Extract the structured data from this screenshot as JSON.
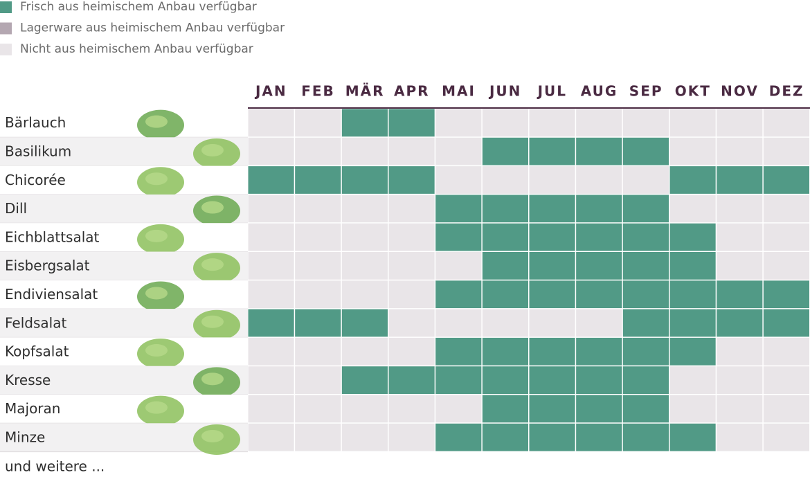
{
  "legend": [
    {
      "label": "Frisch aus heimischem Anbau verfügbar",
      "color": "#519a86"
    },
    {
      "label": "Lagerware aus heimischem Anbau verfügbar",
      "color": "#b4a7b1"
    },
    {
      "label": "Nicht aus heimischem Anbau verfügbar",
      "color": "#e9e5e8"
    }
  ],
  "months": [
    "JAN",
    "FEB",
    "MÄR",
    "APR",
    "MAI",
    "JUN",
    "JUL",
    "AUG",
    "SEP",
    "OKT",
    "NOV",
    "DEZ"
  ],
  "rows": [
    {
      "name": "Bärlauch",
      "status": [
        2,
        2,
        0,
        0,
        2,
        2,
        2,
        2,
        2,
        2,
        2,
        2
      ]
    },
    {
      "name": "Basilikum",
      "status": [
        2,
        2,
        2,
        2,
        2,
        0,
        0,
        0,
        0,
        2,
        2,
        2
      ]
    },
    {
      "name": "Chicorée",
      "status": [
        0,
        0,
        0,
        0,
        2,
        2,
        2,
        2,
        2,
        0,
        0,
        0
      ]
    },
    {
      "name": "Dill",
      "status": [
        2,
        2,
        2,
        2,
        0,
        0,
        0,
        0,
        0,
        2,
        2,
        2
      ]
    },
    {
      "name": "Eichblattsalat",
      "status": [
        2,
        2,
        2,
        2,
        0,
        0,
        0,
        0,
        0,
        0,
        2,
        2
      ]
    },
    {
      "name": "Eisbergsalat",
      "status": [
        2,
        2,
        2,
        2,
        2,
        0,
        0,
        0,
        0,
        0,
        2,
        2
      ]
    },
    {
      "name": "Endiviensalat",
      "status": [
        2,
        2,
        2,
        2,
        0,
        0,
        0,
        0,
        0,
        0,
        0,
        0
      ]
    },
    {
      "name": "Feldsalat",
      "status": [
        0,
        0,
        0,
        2,
        2,
        2,
        2,
        2,
        0,
        0,
        0,
        0
      ]
    },
    {
      "name": "Kopfsalat",
      "status": [
        2,
        2,
        2,
        2,
        0,
        0,
        0,
        0,
        0,
        0,
        2,
        2
      ]
    },
    {
      "name": "Kresse",
      "status": [
        2,
        2,
        0,
        0,
        0,
        0,
        0,
        0,
        0,
        2,
        2,
        2
      ]
    },
    {
      "name": "Majoran",
      "status": [
        2,
        2,
        2,
        2,
        2,
        0,
        0,
        0,
        0,
        2,
        2,
        2
      ]
    },
    {
      "name": "Minze",
      "status": [
        2,
        2,
        2,
        2,
        0,
        0,
        0,
        0,
        0,
        0,
        2,
        2
      ]
    }
  ],
  "footer": "und weitere ..."
}
